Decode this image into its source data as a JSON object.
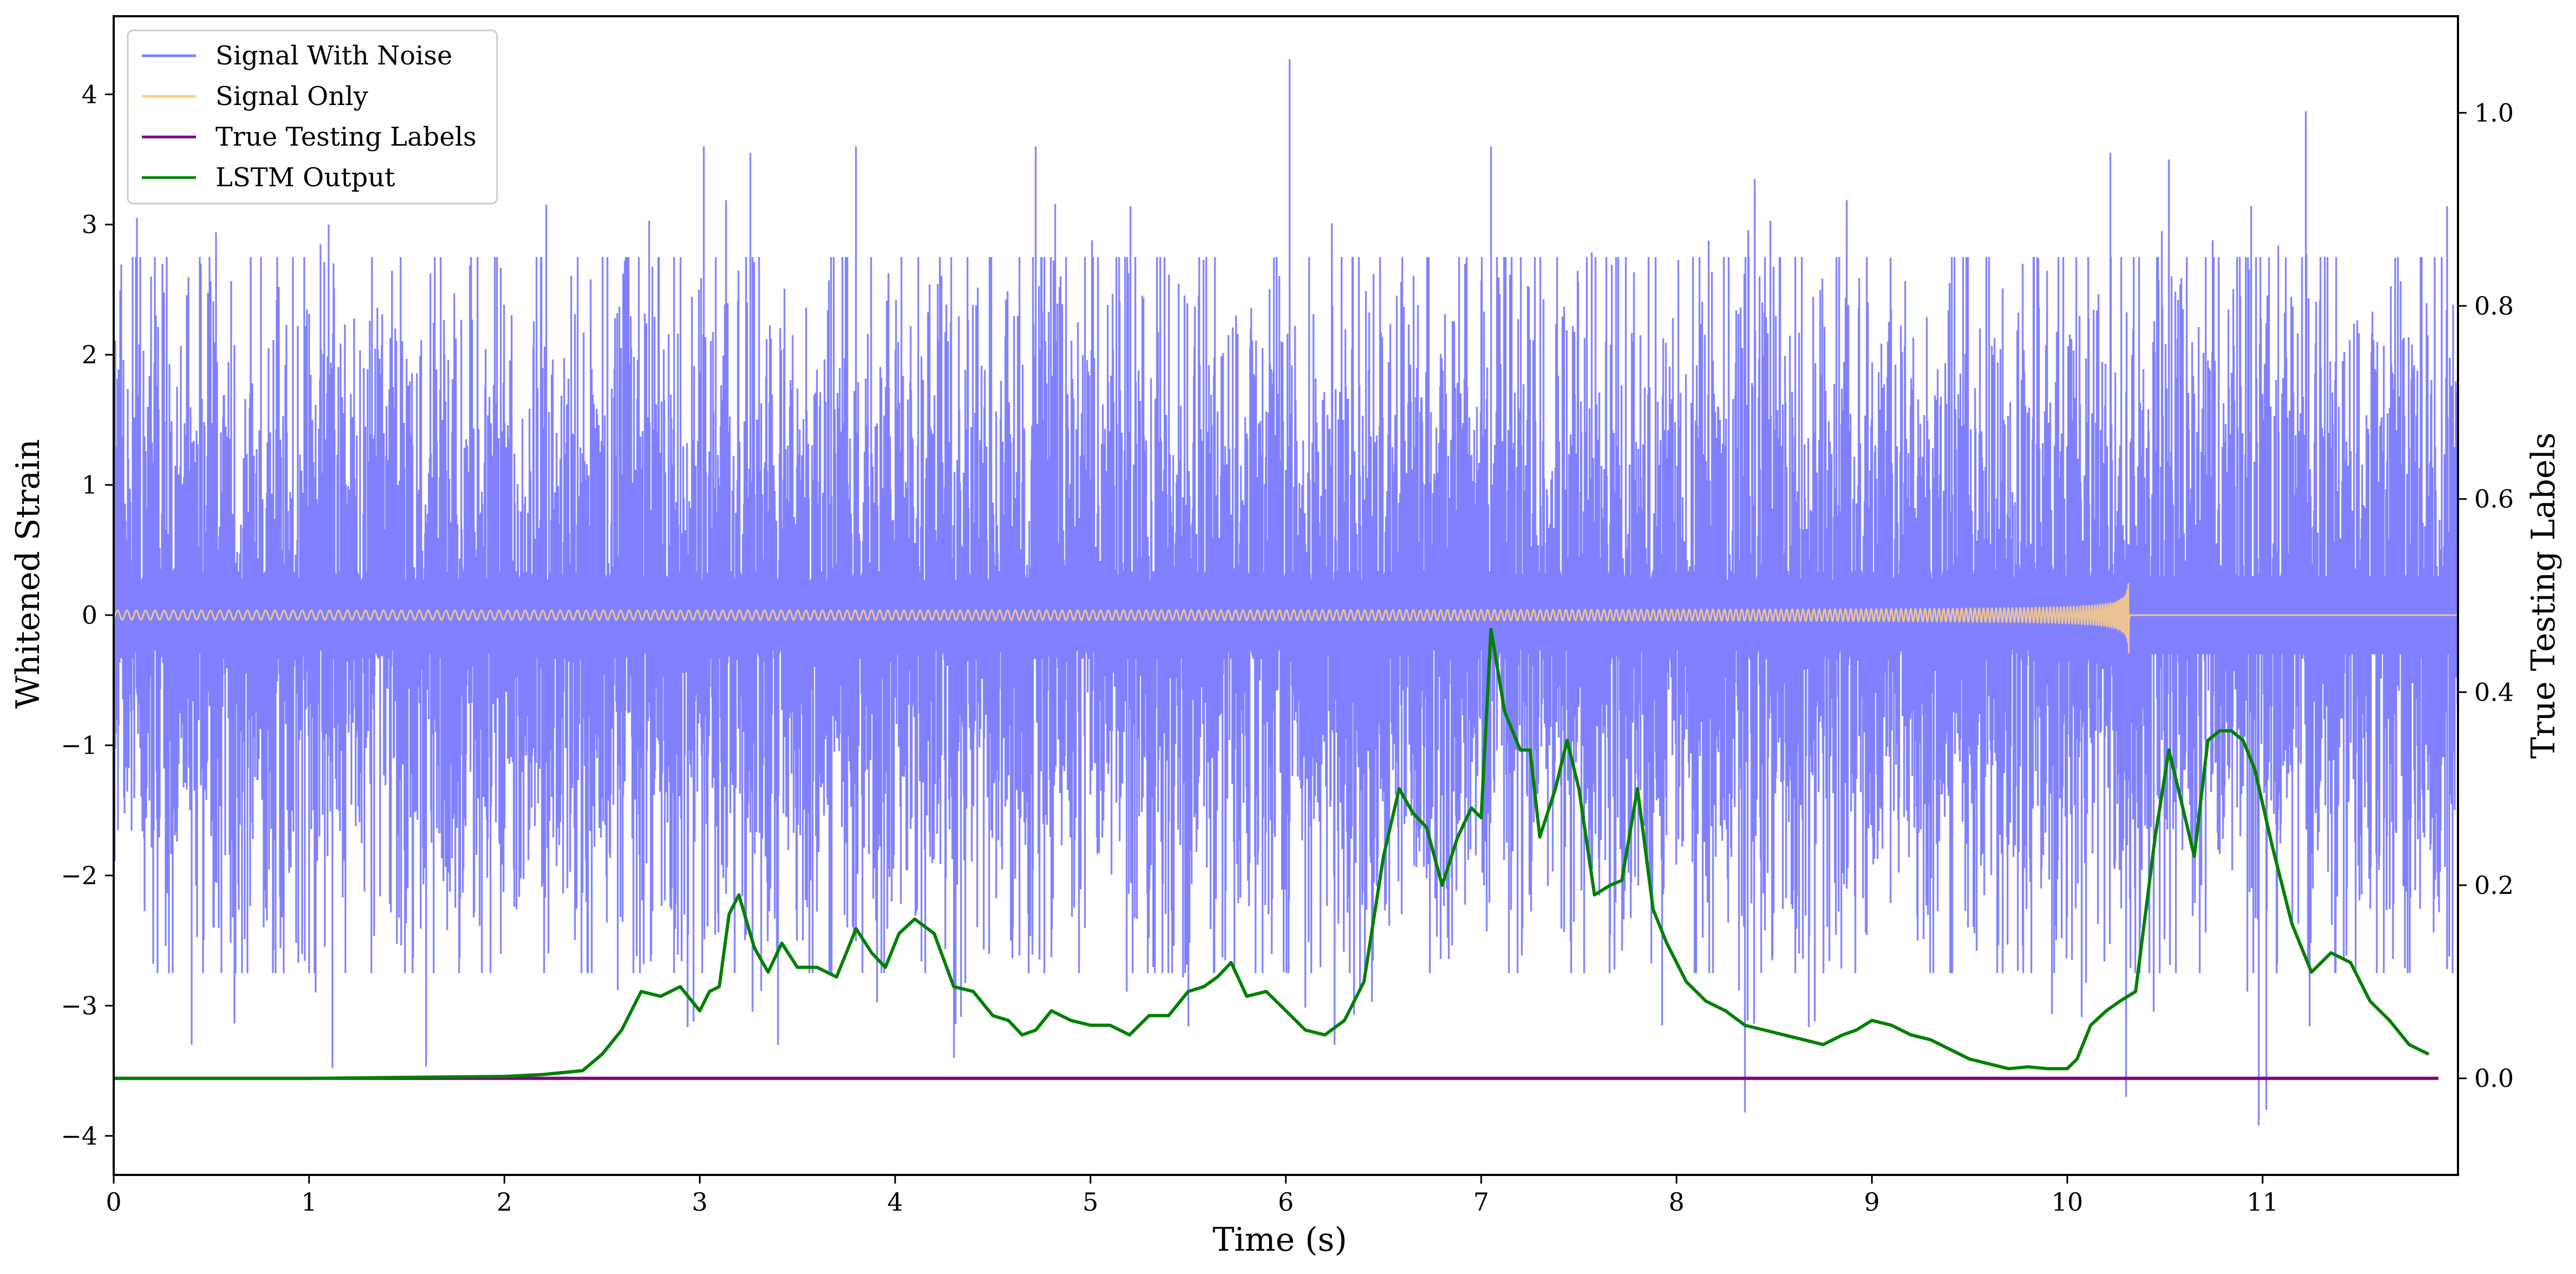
{
  "chart_data": {
    "type": "line",
    "title": "",
    "xlabel": "Time (s)",
    "ylabel_left": "Whitened Strain",
    "ylabel_right": "True Testing Labels",
    "xlim": [
      0,
      12
    ],
    "ylim_left": [
      -4.3,
      4.6
    ],
    "ylim_right": [
      -0.1,
      1.1
    ],
    "x_ticks": [
      0,
      1,
      2,
      3,
      4,
      5,
      6,
      7,
      8,
      9,
      10,
      11
    ],
    "x_tick_labels": [
      "0",
      "1",
      "2",
      "3",
      "4",
      "5",
      "6",
      "7",
      "8",
      "9",
      "10",
      "11"
    ],
    "y_left_ticks": [
      4,
      3,
      2,
      1,
      0,
      -1,
      -2,
      -3,
      -4
    ],
    "y_left_tick_labels": [
      "4",
      "3",
      "2",
      "1",
      "0",
      "−1",
      "−2",
      "−3",
      "−4"
    ],
    "y_right_ticks": [
      1.0,
      0.8,
      0.6,
      0.4,
      0.2,
      0.0
    ],
    "y_right_tick_labels": [
      "1.0",
      "0.8",
      "0.6",
      "0.4",
      "0.2",
      "0.0"
    ],
    "grid": false,
    "legend_position": "top-left",
    "series": [
      {
        "name": "Signal With Noise",
        "axis": "left",
        "color": "#8080ff",
        "description_values": {
          "approx_std": 0.8,
          "min": -3.9,
          "max": 4.27
        },
        "spikes": [
          [
            0.12,
            3.05
          ],
          [
            1.1,
            3.0
          ],
          [
            3.02,
            3.6
          ],
          [
            3.26,
            3.55
          ],
          [
            3.8,
            3.6
          ],
          [
            4.72,
            3.6
          ],
          [
            6.02,
            4.27
          ],
          [
            7.05,
            3.6
          ],
          [
            8.4,
            3.35
          ],
          [
            10.22,
            3.55
          ],
          [
            10.52,
            3.5
          ],
          [
            11.22,
            3.87
          ],
          [
            0.4,
            -3.3
          ],
          [
            1.12,
            -3.48
          ],
          [
            1.6,
            -3.47
          ],
          [
            3.4,
            -3.3
          ],
          [
            4.3,
            -3.4
          ],
          [
            6.25,
            -3.3
          ],
          [
            8.35,
            -3.82
          ],
          [
            10.3,
            -3.7
          ],
          [
            10.98,
            -3.92
          ],
          [
            11.02,
            -3.8
          ]
        ]
      },
      {
        "name": "Signal Only",
        "axis": "left",
        "color": "#ffd080",
        "description_values": {
          "chirp_start": 0,
          "merger_time": 10.32,
          "peak_amplitude_pos": 0.33,
          "peak_amplitude_neg": -0.48,
          "initial_amplitude": 0.03
        }
      },
      {
        "name": "True Testing Labels",
        "axis": "right",
        "color": "#800080",
        "x": [
          0,
          11.9
        ],
        "values": [
          0.0,
          0.0
        ]
      },
      {
        "name": "LSTM Output",
        "axis": "right",
        "color": "#008000",
        "x": [
          0,
          1,
          1.5,
          2.0,
          2.2,
          2.4,
          2.5,
          2.6,
          2.7,
          2.8,
          2.9,
          3.0,
          3.05,
          3.1,
          3.15,
          3.2,
          3.28,
          3.35,
          3.42,
          3.5,
          3.6,
          3.7,
          3.8,
          3.88,
          3.95,
          4.02,
          4.1,
          4.2,
          4.3,
          4.4,
          4.5,
          4.58,
          4.65,
          4.72,
          4.8,
          4.9,
          5.0,
          5.1,
          5.2,
          5.3,
          5.4,
          5.5,
          5.58,
          5.65,
          5.72,
          5.8,
          5.9,
          6.0,
          6.1,
          6.2,
          6.3,
          6.4,
          6.5,
          6.58,
          6.65,
          6.72,
          6.8,
          6.88,
          6.95,
          7.0,
          7.05,
          7.12,
          7.2,
          7.25,
          7.3,
          7.38,
          7.44,
          7.5,
          7.58,
          7.66,
          7.72,
          7.8,
          7.88,
          7.95,
          8.05,
          8.15,
          8.25,
          8.35,
          8.45,
          8.55,
          8.65,
          8.75,
          8.85,
          8.92,
          9.0,
          9.1,
          9.2,
          9.3,
          9.4,
          9.5,
          9.6,
          9.7,
          9.8,
          9.9,
          10.0,
          10.05,
          10.12,
          10.2,
          10.27,
          10.35,
          10.45,
          10.52,
          10.58,
          10.65,
          10.72,
          10.78,
          10.84,
          10.9,
          10.96,
          11.05,
          11.15,
          11.25,
          11.35,
          11.45,
          11.55,
          11.65,
          11.75,
          11.85
        ],
        "values": [
          0.0,
          0.0,
          0.001,
          0.002,
          0.004,
          0.008,
          0.025,
          0.05,
          0.09,
          0.085,
          0.095,
          0.07,
          0.09,
          0.095,
          0.17,
          0.19,
          0.135,
          0.11,
          0.14,
          0.115,
          0.115,
          0.105,
          0.155,
          0.13,
          0.115,
          0.15,
          0.165,
          0.15,
          0.095,
          0.09,
          0.065,
          0.06,
          0.045,
          0.05,
          0.07,
          0.06,
          0.055,
          0.055,
          0.045,
          0.065,
          0.065,
          0.09,
          0.095,
          0.105,
          0.12,
          0.085,
          0.09,
          0.07,
          0.05,
          0.045,
          0.06,
          0.1,
          0.23,
          0.3,
          0.275,
          0.26,
          0.2,
          0.25,
          0.28,
          0.27,
          0.465,
          0.38,
          0.34,
          0.34,
          0.25,
          0.3,
          0.35,
          0.3,
          0.19,
          0.2,
          0.205,
          0.3,
          0.175,
          0.14,
          0.1,
          0.08,
          0.07,
          0.055,
          0.05,
          0.045,
          0.04,
          0.035,
          0.045,
          0.05,
          0.06,
          0.055,
          0.045,
          0.04,
          0.03,
          0.02,
          0.015,
          0.01,
          0.012,
          0.01,
          0.01,
          0.02,
          0.055,
          0.07,
          0.08,
          0.09,
          0.25,
          0.34,
          0.29,
          0.23,
          0.35,
          0.36,
          0.36,
          0.35,
          0.32,
          0.24,
          0.16,
          0.11,
          0.13,
          0.12,
          0.08,
          0.06,
          0.035,
          0.025
        ]
      }
    ]
  }
}
